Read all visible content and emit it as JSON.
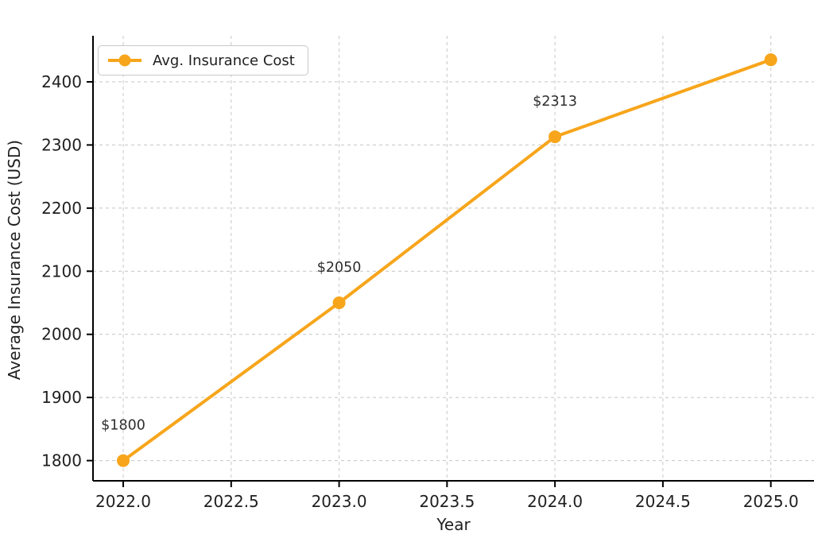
{
  "chart_data": {
    "type": "line",
    "title": "",
    "xlabel": "Year",
    "ylabel": "Average Insurance Cost (USD)",
    "x": [
      2022,
      2023,
      2024,
      2025
    ],
    "series": [
      {
        "name": "Avg. Insurance Cost",
        "values": [
          1800,
          2050,
          2313,
          2435
        ]
      }
    ],
    "annotations": [
      {
        "x": 2022,
        "y": 1800,
        "text": "$1800"
      },
      {
        "x": 2023,
        "y": 2050,
        "text": "$2050"
      },
      {
        "x": 2024,
        "y": 2313,
        "text": "$2313"
      }
    ],
    "legend": {
      "label": "Avg. Insurance Cost",
      "position": "upper left"
    },
    "xticks": [
      2022.0,
      2022.5,
      2023.0,
      2023.5,
      2024.0,
      2024.5,
      2025.0
    ],
    "xtick_labels": [
      "2022.0",
      "2022.5",
      "2023.0",
      "2023.5",
      "2024.0",
      "2024.5",
      "2025.0"
    ],
    "yticks": [
      1800,
      1900,
      2000,
      2100,
      2200,
      2300,
      2400
    ],
    "ytick_labels": [
      "1800",
      "1900",
      "2000",
      "2100",
      "2200",
      "2300",
      "2400"
    ],
    "xlim": [
      2021.86,
      2025.2
    ],
    "ylim": [
      1768,
      2473
    ],
    "grid": true,
    "grid_style": "dashed",
    "colors": {
      "line": "#F7A51B",
      "marker": "#F7A51B",
      "grid": "#cccccc",
      "spine": "#000000",
      "tick_text": "#1f1f1f",
      "annotation_text": "#2e2e2e",
      "background": "#ffffff"
    }
  }
}
